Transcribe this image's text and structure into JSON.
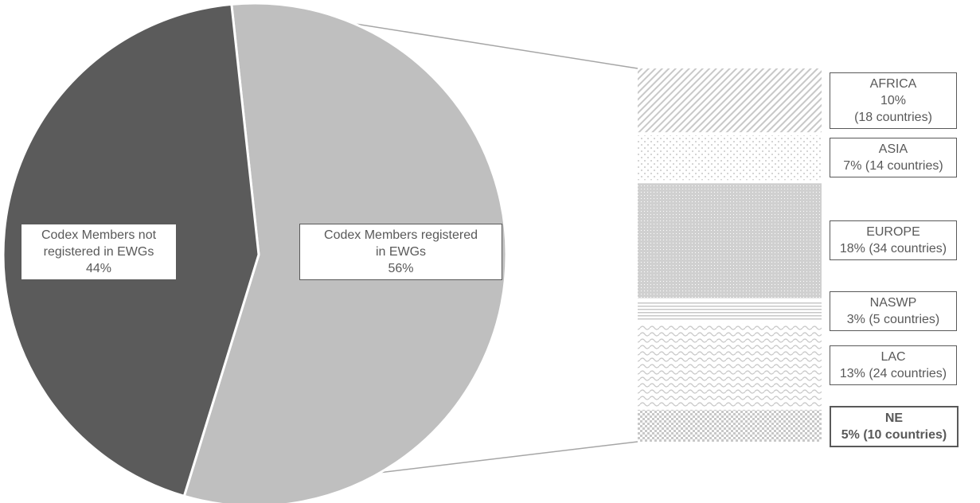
{
  "colors": {
    "not_registered": "#5b5b5b",
    "registered": "#bfbfbf",
    "pattern": "#c8c8c8",
    "label_text": "#595959",
    "label_border": "#595959",
    "connector": "#a6a6a6"
  },
  "chart_data": {
    "type": "pie",
    "subtype": "bar-of-pie",
    "slices": [
      {
        "name": "Codex Members not registered in EWGs",
        "value": 44,
        "label_line1": "Codex Members not",
        "label_line2": "registered in EWGs",
        "label_pct": "44%"
      },
      {
        "name": "Codex Members registered in EWGs",
        "value": 56,
        "label_line1": "Codex Members registered",
        "label_line2": "in EWGs",
        "label_pct": "56%"
      }
    ],
    "breakdown": [
      {
        "region": "AFRICA",
        "value": 10,
        "countries": 18,
        "line1": "AFRICA",
        "line2": "10%",
        "line3": "(18 countries)",
        "pattern": "diag"
      },
      {
        "region": "ASIA",
        "value": 7,
        "countries": 14,
        "line1": "ASIA",
        "line2": "7% (14 countries)",
        "pattern": "dots"
      },
      {
        "region": "EUROPE",
        "value": 18,
        "countries": 34,
        "line1": "EUROPE",
        "line2": "18% (34 countries)",
        "pattern": "dense"
      },
      {
        "region": "NASWP",
        "value": 3,
        "countries": 5,
        "line1": "NASWP",
        "line2": "3% (5 countries)",
        "pattern": "hlines"
      },
      {
        "region": "LAC",
        "value": 13,
        "countries": 24,
        "line1": "LAC",
        "line2": "13% (24 countries)",
        "pattern": "wave"
      },
      {
        "region": "NE",
        "value": 5,
        "countries": 10,
        "line1": "NE",
        "line2": "5% (10 countries)",
        "pattern": "checker",
        "bold": true
      }
    ]
  }
}
